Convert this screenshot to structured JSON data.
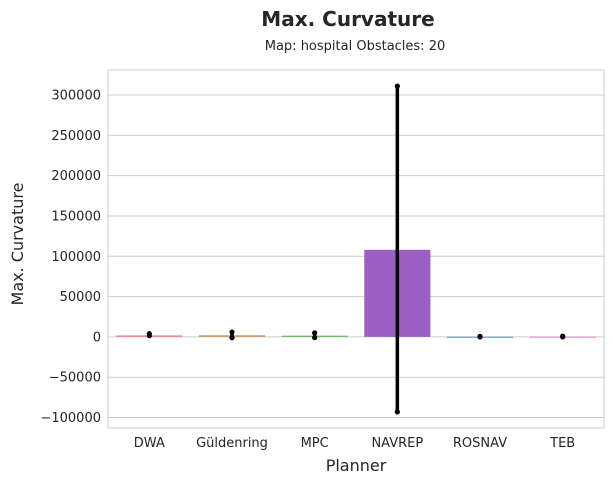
{
  "chart_data": {
    "type": "bar",
    "title": "Max. Curvature",
    "subtitle": "Map: hospital Obstacles: 20",
    "xlabel": "Planner",
    "ylabel": "Max. Curvature",
    "ylim": [
      -113000,
      331000
    ],
    "yticks": [
      -100000,
      -50000,
      0,
      50000,
      100000,
      150000,
      200000,
      250000,
      300000
    ],
    "ytick_labels": [
      "−100000",
      "−50000",
      "0",
      "50000",
      "100000",
      "150000",
      "200000",
      "250000",
      "300000"
    ],
    "grid": true,
    "categories": [
      "DWA",
      "Güldenring",
      "MPC",
      "NAVREP",
      "ROSNAV",
      "TEB"
    ],
    "values": [
      1800,
      2000,
      1500,
      108000,
      300,
      400
    ],
    "error_low": [
      1500,
      -1000,
      -1000,
      -93000,
      0,
      0
    ],
    "error_high": [
      4000,
      6000,
      5000,
      311000,
      600,
      800
    ],
    "colors": [
      "#f27f95",
      "#cf9a5a",
      "#5fba5f",
      "#9c5fc4",
      "#48b5c6",
      "#e28ed6"
    ]
  }
}
